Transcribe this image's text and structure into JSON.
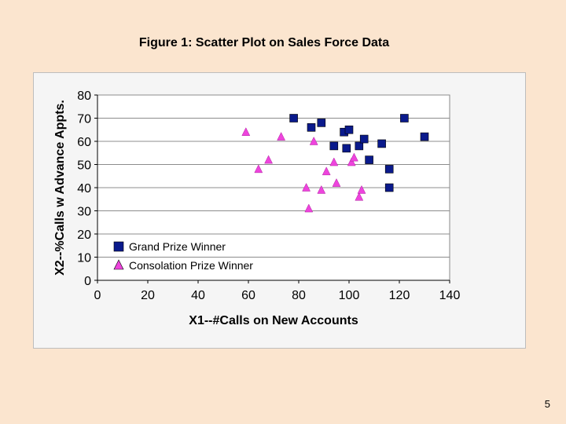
{
  "slide": {
    "title": "Figure 1: Scatter Plot on Sales Force Data",
    "page_number": "5"
  },
  "colors": {
    "background": "#fbe5cf",
    "plot_area": "#ffffff",
    "grand_prize": "#0a1a8c",
    "consolation_prize": "#ee44dd"
  },
  "chart_data": {
    "type": "scatter",
    "xlabel": "X1--#Calls on New Accounts",
    "ylabel": "X2--%Calls w Advance Appts.",
    "xlim": [
      0,
      140
    ],
    "ylim": [
      0,
      80
    ],
    "x_ticks": [
      0,
      20,
      40,
      60,
      80,
      100,
      120,
      140
    ],
    "y_ticks": [
      0,
      10,
      20,
      30,
      40,
      50,
      60,
      70,
      80
    ],
    "grid": "horizontal",
    "legend_position": "bottom-left",
    "series": [
      {
        "name": "Grand Prize Winner",
        "marker": "square",
        "color": "#0a1a8c",
        "points": [
          {
            "x": 78,
            "y": 70
          },
          {
            "x": 85,
            "y": 66
          },
          {
            "x": 89,
            "y": 68
          },
          {
            "x": 94,
            "y": 58
          },
          {
            "x": 98,
            "y": 64
          },
          {
            "x": 100,
            "y": 65
          },
          {
            "x": 99,
            "y": 57
          },
          {
            "x": 104,
            "y": 58
          },
          {
            "x": 106,
            "y": 61
          },
          {
            "x": 108,
            "y": 52
          },
          {
            "x": 113,
            "y": 59
          },
          {
            "x": 116,
            "y": 48
          },
          {
            "x": 116,
            "y": 40
          },
          {
            "x": 122,
            "y": 70
          },
          {
            "x": 130,
            "y": 62
          }
        ]
      },
      {
        "name": "Consolation Prize Winner",
        "marker": "triangle",
        "color": "#ee44dd",
        "points": [
          {
            "x": 59,
            "y": 64
          },
          {
            "x": 64,
            "y": 48
          },
          {
            "x": 68,
            "y": 52
          },
          {
            "x": 73,
            "y": 62
          },
          {
            "x": 83,
            "y": 40
          },
          {
            "x": 84,
            "y": 31
          },
          {
            "x": 86,
            "y": 60
          },
          {
            "x": 89,
            "y": 39
          },
          {
            "x": 91,
            "y": 47
          },
          {
            "x": 94,
            "y": 51
          },
          {
            "x": 95,
            "y": 42
          },
          {
            "x": 101,
            "y": 51
          },
          {
            "x": 102,
            "y": 53
          },
          {
            "x": 104,
            "y": 36
          },
          {
            "x": 105,
            "y": 39
          }
        ]
      }
    ]
  }
}
